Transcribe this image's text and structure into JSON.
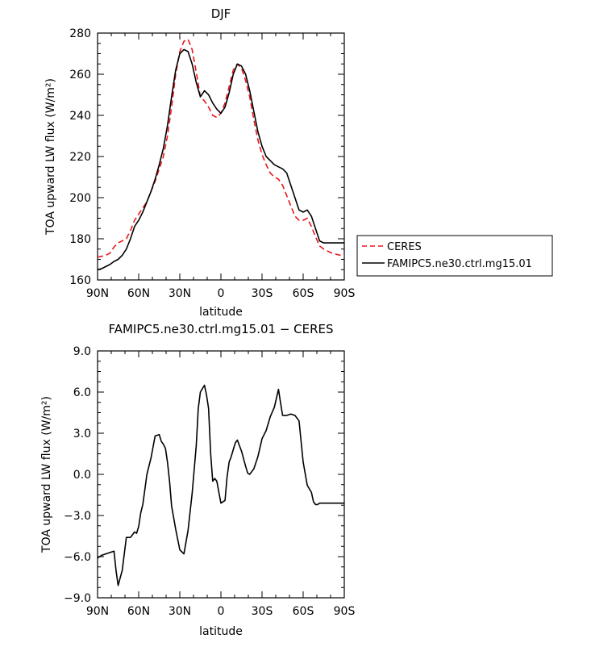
{
  "chart_data": [
    {
      "type": "line",
      "title": "DJF",
      "xlabel": "latitude",
      "ylabel": "TOA upward LW flux (W/m²)",
      "ylim": [
        160,
        280
      ],
      "yticks": [
        "160",
        "180",
        "200",
        "220",
        "240",
        "260",
        "280"
      ],
      "xticks": [
        "90N",
        "60N",
        "30N",
        "0",
        "30S",
        "60S",
        "90S"
      ],
      "legend_position": "right",
      "x": [
        90,
        87,
        84,
        81,
        78,
        75,
        72,
        69,
        66,
        63,
        60,
        57,
        54,
        51,
        48,
        45,
        42,
        39,
        36,
        33,
        30,
        27,
        24,
        21,
        18,
        15,
        12,
        9,
        6,
        3,
        0,
        -3,
        -6,
        -9,
        -12,
        -15,
        -18,
        -21,
        -24,
        -27,
        -30,
        -33,
        -36,
        -39,
        -42,
        -45,
        -48,
        -51,
        -54,
        -57,
        -60,
        -63,
        -66,
        -69,
        -72,
        -75,
        -78,
        -81,
        -84,
        -87,
        -90
      ],
      "series": [
        {
          "name": "CERES",
          "color": "#e8171d",
          "dash": "dashed",
          "values": [
            171,
            171.5,
            172,
            173,
            176,
            178,
            179,
            180,
            184,
            189,
            192,
            195,
            198,
            203,
            208,
            214,
            220,
            230,
            244,
            260,
            271,
            276,
            277,
            272,
            261,
            249,
            247,
            244,
            240,
            239,
            241,
            246,
            254,
            262,
            265,
            263,
            257,
            249,
            238,
            228,
            221,
            216,
            212,
            210,
            209,
            206,
            201,
            196,
            191,
            189,
            189,
            190,
            186,
            181,
            176.5,
            175,
            174,
            173,
            172.5,
            172,
            171.5
          ]
        },
        {
          "name": "FAMIPC5.ne30.ctrl.mg15.01",
          "color": "#000000",
          "dash": "solid",
          "values": [
            165,
            165.5,
            166.5,
            167.5,
            169,
            170,
            172,
            175,
            180,
            186,
            189,
            193,
            198,
            203,
            209,
            216,
            224,
            235,
            249,
            262,
            270,
            272,
            271,
            265,
            256,
            249,
            252,
            250,
            246,
            243,
            241,
            244,
            251,
            260,
            265,
            264,
            260,
            252,
            242,
            232,
            225,
            220,
            218,
            216,
            215,
            214,
            212,
            206,
            200,
            194,
            193,
            194,
            191,
            185,
            179,
            178,
            178,
            178,
            178,
            178,
            178
          ]
        }
      ]
    },
    {
      "type": "line",
      "title": "FAMIPC5.ne30.ctrl.mg15.01 − CERES",
      "xlabel": "latitude",
      "ylabel": "TOA upward LW flux (W/m²)",
      "ylim": [
        -9,
        9
      ],
      "yticks": [
        "−9.0",
        "−6.0",
        "−3.0",
        "0.0",
        "3.0",
        "6.0",
        "9.0"
      ],
      "xticks": [
        "90N",
        "60N",
        "30N",
        "0",
        "30S",
        "60S",
        "90S"
      ],
      "x": [
        90,
        87,
        84,
        81,
        78,
        76.5,
        75,
        72,
        69,
        66,
        63,
        61.5,
        60,
        58.5,
        57,
        55.5,
        54,
        51,
        48,
        45,
        43.5,
        42,
        40.5,
        39,
        37.5,
        36,
        33,
        30,
        27,
        24,
        21,
        18,
        16.5,
        15,
        12,
        10.5,
        9,
        7.5,
        6,
        4.5,
        3,
        0,
        -3,
        -4.5,
        -6,
        -7.5,
        -9,
        -10.5,
        -12,
        -15,
        -18,
        -19.5,
        -21,
        -24,
        -27,
        -30,
        -33,
        -36,
        -39,
        -42,
        -43.5,
        -45,
        -48,
        -51,
        -54,
        -57,
        -60,
        -63,
        -66,
        -67.5,
        -69,
        -70.5,
        -72,
        -75,
        -78,
        -79.5,
        -81,
        -84,
        -87,
        -90
      ],
      "series": [
        {
          "name": "FAMIPC5.ne30.ctrl.mg15.01 − CERES",
          "color": "#000000",
          "values": [
            -6.1,
            -5.9,
            -5.8,
            -5.7,
            -5.6,
            -7,
            -8.1,
            -7,
            -4.6,
            -4.6,
            -4.2,
            -4.3,
            -3.8,
            -2.8,
            -2.2,
            -1.1,
            0,
            1.2,
            2.8,
            2.9,
            2.4,
            2.2,
            1.9,
            0.9,
            -0.5,
            -2.3,
            -4,
            -5.5,
            -5.8,
            -4.1,
            -1.4,
            2.1,
            4.8,
            6,
            6.5,
            5.8,
            4.8,
            1.5,
            -0.5,
            -0.3,
            -0.5,
            -2.1,
            -1.9,
            -0.2,
            0.9,
            1.3,
            1.8,
            2.3,
            2.5,
            1.7,
            0.6,
            0.1,
            0,
            0.4,
            1.3,
            2.6,
            3.2,
            4.2,
            4.9,
            6.2,
            5.2,
            4.3,
            4.3,
            4.4,
            4.3,
            3.9,
            0.9,
            -0.8,
            -1.3,
            -2,
            -2.2,
            -2.2,
            -2.1,
            -2.1,
            -2.1,
            -2.1,
            -2.1,
            -2.1,
            -2.1,
            -2.1
          ]
        }
      ]
    }
  ]
}
